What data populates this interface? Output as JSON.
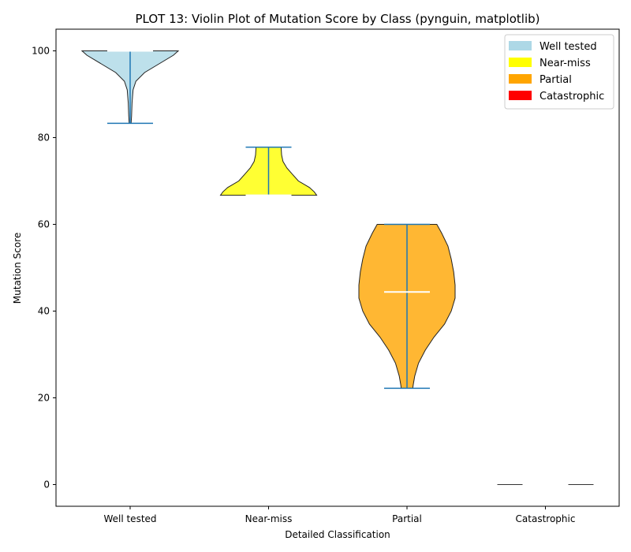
{
  "chart_data": {
    "type": "violin",
    "title": "PLOT 13: Violin Plot of Mutation Score by Class (pynguin, matplotlib)",
    "xlabel": "Detailed Classification",
    "ylabel": "Mutation Score",
    "ylim": [
      -5,
      105
    ],
    "yticks": [
      0,
      20,
      40,
      60,
      80,
      100
    ],
    "grid": false,
    "legend_position": "top-right",
    "categories": [
      "Well tested",
      "Near-miss",
      "Partial",
      "Catastrophic"
    ],
    "violins": [
      {
        "name": "Well tested",
        "color": "#add8e6",
        "min": 83.3,
        "max": 100,
        "median": 100,
        "density": [
          [
            83.3,
            0.02
          ],
          [
            85,
            0.03
          ],
          [
            88,
            0.04
          ],
          [
            91,
            0.06
          ],
          [
            93,
            0.12
          ],
          [
            95,
            0.3
          ],
          [
            97,
            0.6
          ],
          [
            99,
            0.9
          ],
          [
            100,
            1.0
          ]
        ]
      },
      {
        "name": "Near-miss",
        "color": "#ffff00",
        "min": 66.7,
        "max": 77.8,
        "median": 66.7,
        "density": [
          [
            66.7,
            1.0
          ],
          [
            67.5,
            0.95
          ],
          [
            68.5,
            0.85
          ],
          [
            70,
            0.62
          ],
          [
            71.5,
            0.5
          ],
          [
            73,
            0.38
          ],
          [
            74.5,
            0.3
          ],
          [
            76,
            0.27
          ],
          [
            77.8,
            0.26
          ]
        ]
      },
      {
        "name": "Partial",
        "color": "#ffa500",
        "min": 22.2,
        "max": 60,
        "median": 44.4,
        "density": [
          [
            22.2,
            0.12
          ],
          [
            23,
            0.13
          ],
          [
            25,
            0.16
          ],
          [
            28,
            0.24
          ],
          [
            31,
            0.38
          ],
          [
            34,
            0.56
          ],
          [
            37,
            0.78
          ],
          [
            40,
            0.92
          ],
          [
            43,
            1.0
          ],
          [
            46,
            1.0
          ],
          [
            49,
            0.97
          ],
          [
            52,
            0.92
          ],
          [
            55,
            0.85
          ],
          [
            58,
            0.72
          ],
          [
            60,
            0.62
          ]
        ]
      },
      {
        "name": "Catastrophic",
        "color": "#ff0000",
        "min": 0,
        "max": 0,
        "median": 0,
        "density": [
          [
            0,
            1.0
          ]
        ]
      }
    ],
    "legend": [
      {
        "label": "Well tested",
        "color": "#add8e6"
      },
      {
        "label": "Near-miss",
        "color": "#ffff00"
      },
      {
        "label": "Partial",
        "color": "#ffa500"
      },
      {
        "label": "Catastrophic",
        "color": "#ff0000"
      }
    ]
  }
}
